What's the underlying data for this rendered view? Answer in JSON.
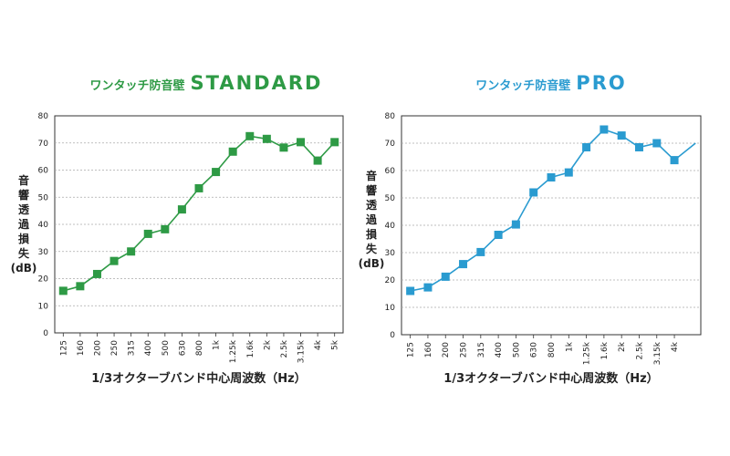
{
  "chart_data": [
    {
      "type": "line",
      "title_jp": "ワンタッチ防音壁",
      "title_en": "STANDARD",
      "color": "#2e9a45",
      "categories": [
        "125",
        "160",
        "200",
        "250",
        "315",
        "400",
        "500",
        "630",
        "800",
        "1k",
        "1.25k",
        "1.6k",
        "2k",
        "2.5k",
        "3.15k",
        "4k",
        "5k"
      ],
      "values": [
        15.5,
        17.2,
        21.7,
        26.5,
        30.0,
        36.5,
        38.2,
        45.5,
        53.3,
        59.3,
        66.8,
        72.5,
        71.5,
        68.3,
        70.3,
        63.5,
        70.3
      ],
      "xlabel": "1/3オクターブバンド中心周波数（Hz）",
      "ylabel_chars": [
        "音",
        "響",
        "透",
        "過",
        "損",
        "失",
        "(dB)"
      ],
      "ylim": [
        0,
        80
      ],
      "yticks": [
        "0",
        "10",
        "20",
        "30",
        "40",
        "50",
        "60",
        "70",
        "80"
      ],
      "grid": true
    },
    {
      "type": "line",
      "title_jp": "ワンタッチ防音壁",
      "title_en": "PRO",
      "color": "#2a9bd0",
      "categories": [
        "125",
        "160",
        "200",
        "250",
        "315",
        "400",
        "500",
        "630",
        "800",
        "1k",
        "1.25k",
        "1.6k",
        "2k",
        "2.5k",
        "3.15k",
        "4k"
      ],
      "values": [
        16.0,
        17.3,
        21.2,
        25.8,
        30.2,
        36.5,
        40.3,
        52.0,
        57.5,
        59.3,
        68.5,
        75.0,
        72.8,
        68.5,
        70.0,
        63.8
      ],
      "line_end_value": 70.0,
      "xlabel": "1/3オクターブバンド中心周波数（Hz）",
      "ylabel_chars": [
        "音",
        "響",
        "透",
        "過",
        "損",
        "失",
        "(dB)"
      ],
      "ylim": [
        0,
        80
      ],
      "yticks": [
        "0",
        "10",
        "20",
        "30",
        "40",
        "50",
        "60",
        "70",
        "80"
      ],
      "grid": true
    }
  ]
}
